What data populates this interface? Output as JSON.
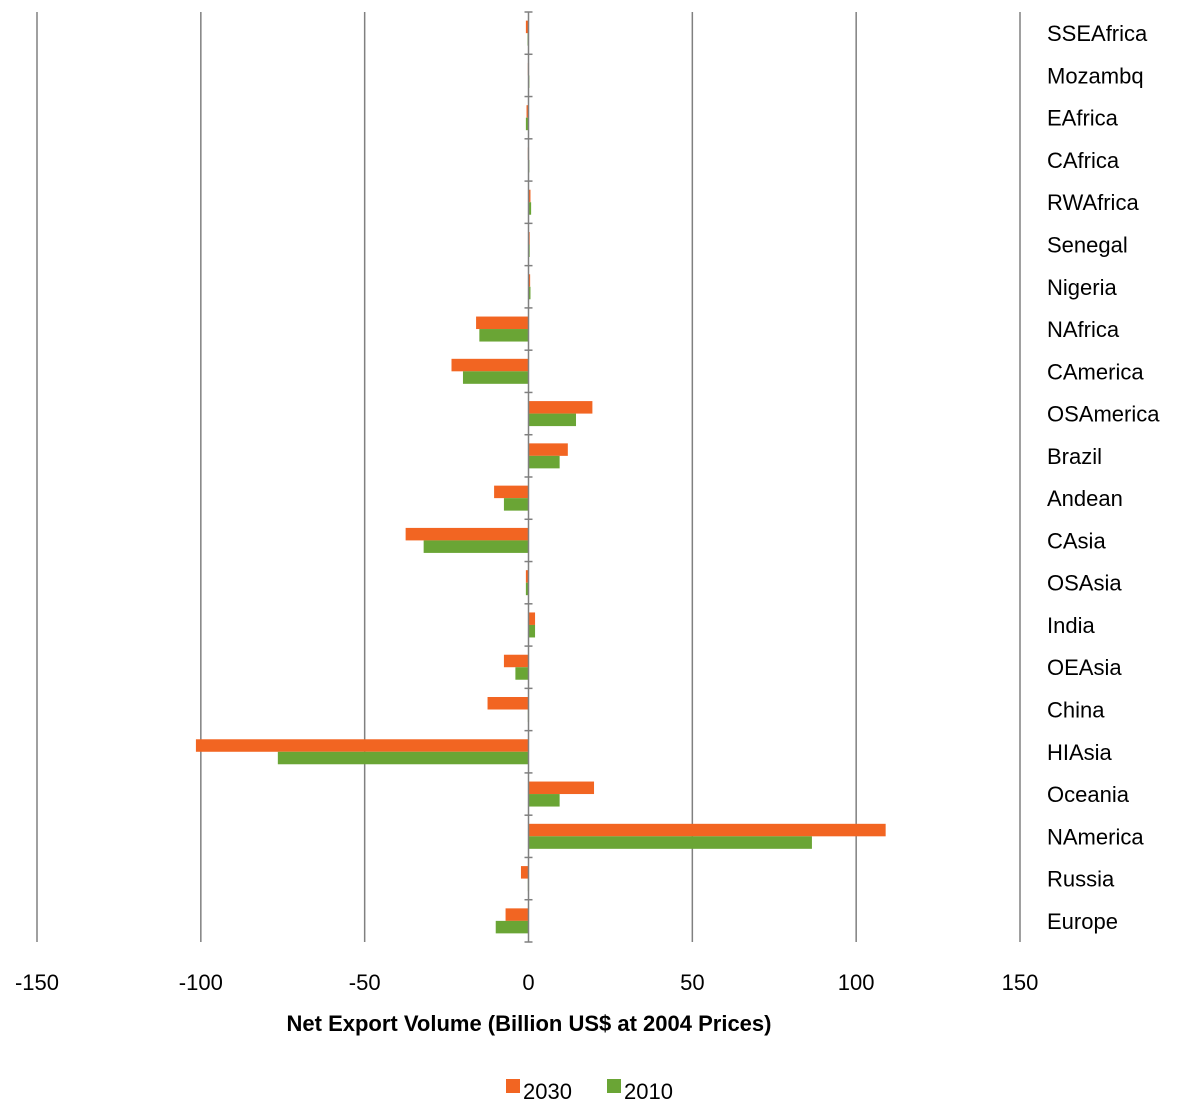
{
  "chart_data": {
    "type": "bar",
    "orientation": "horizontal",
    "title": "",
    "xlabel": "Net Export Volume (Billion US$ at 2004 Prices)",
    "ylabel": "",
    "xlim": [
      -150,
      150
    ],
    "xticks": [
      -150,
      -100,
      -50,
      0,
      50,
      100,
      150
    ],
    "xtick_labels": [
      "-150",
      "-100",
      "-50",
      "0",
      "50",
      "100",
      "150"
    ],
    "grid": "vertical",
    "legend_position": "bottom",
    "categories": [
      "SSEAfrica",
      "Mozambq",
      "EAfrica",
      "CAfrica",
      "RWAfrica",
      "Senegal",
      "Nigeria",
      "NAfrica",
      "CAmerica",
      "OSAmerica",
      "Brazil",
      "Andean",
      "CAsia",
      "OSAsia",
      "India",
      "OEAsia",
      "China",
      "HIAsia",
      "Oceania",
      "NAmerica",
      "Russia",
      "Europe"
    ],
    "series": [
      {
        "name": "2030",
        "color": "#f26522",
        "values": [
          -0.8,
          -0.2,
          -0.6,
          -0.2,
          0.6,
          0.2,
          0.5,
          -16,
          -23.5,
          19.5,
          12,
          -10.5,
          -37.5,
          -0.8,
          2,
          -7.5,
          -12.5,
          -101.5,
          20,
          109,
          -2.3,
          -7
        ]
      },
      {
        "name": "2010",
        "color": "#6aa535",
        "values": [
          -0.3,
          -0.1,
          -0.8,
          -0.1,
          0.8,
          0.1,
          0.6,
          -15,
          -20,
          14.5,
          9.5,
          -7.5,
          -32,
          -0.8,
          2,
          -4,
          -0.2,
          -76.5,
          9.5,
          86.5,
          -0.2,
          -10
        ]
      }
    ]
  }
}
